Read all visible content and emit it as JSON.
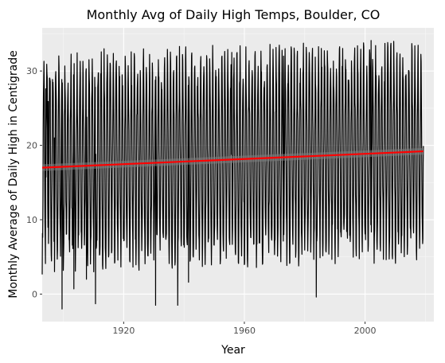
{
  "chart_data": {
    "type": "line",
    "title": "Monthly Avg of Daily High Temps, Boulder, CO",
    "xlabel": "Year",
    "ylabel": "Monthly Average of Daily High in Centigrade",
    "xlim": [
      1893.0,
      2022.8
    ],
    "ylim": [
      -3.7,
      35.8
    ],
    "x_ticks": [
      1920,
      1960,
      2000
    ],
    "y_ticks": [
      0,
      10,
      20,
      30
    ],
    "grid": true,
    "legend": "none",
    "series": [
      {
        "style": "monthly-series",
        "color": "#000000",
        "x_start": 1893.0,
        "x_end": 2019.3,
        "anomalies": [
          [
            1894.2,
            27.6
          ],
          [
            1895.0,
            25.9
          ],
          [
            1897.0,
            21.0
          ],
          [
            1899.6,
            -2.0
          ],
          [
            1903.5,
            0.7
          ],
          [
            1907.7,
            2.0
          ],
          [
            1910.7,
            -1.3
          ],
          [
            1930.6,
            -1.5
          ],
          [
            1937.9,
            -1.5
          ],
          [
            1941.5,
            1.6
          ],
          [
            1955.8,
            32.5
          ],
          [
            1973.0,
            32.0
          ],
          [
            1983.8,
            -0.4
          ],
          [
            2002.0,
            34.1
          ],
          [
            2010.5,
            31.5
          ]
        ]
      },
      {
        "style": "linear-fit",
        "color": "#ff0000",
        "band_color": "#808080",
        "x": [
          1893.0,
          2019.3
        ],
        "y": [
          17.0,
          19.2
        ],
        "band_halfwidth": 0.45
      }
    ]
  }
}
